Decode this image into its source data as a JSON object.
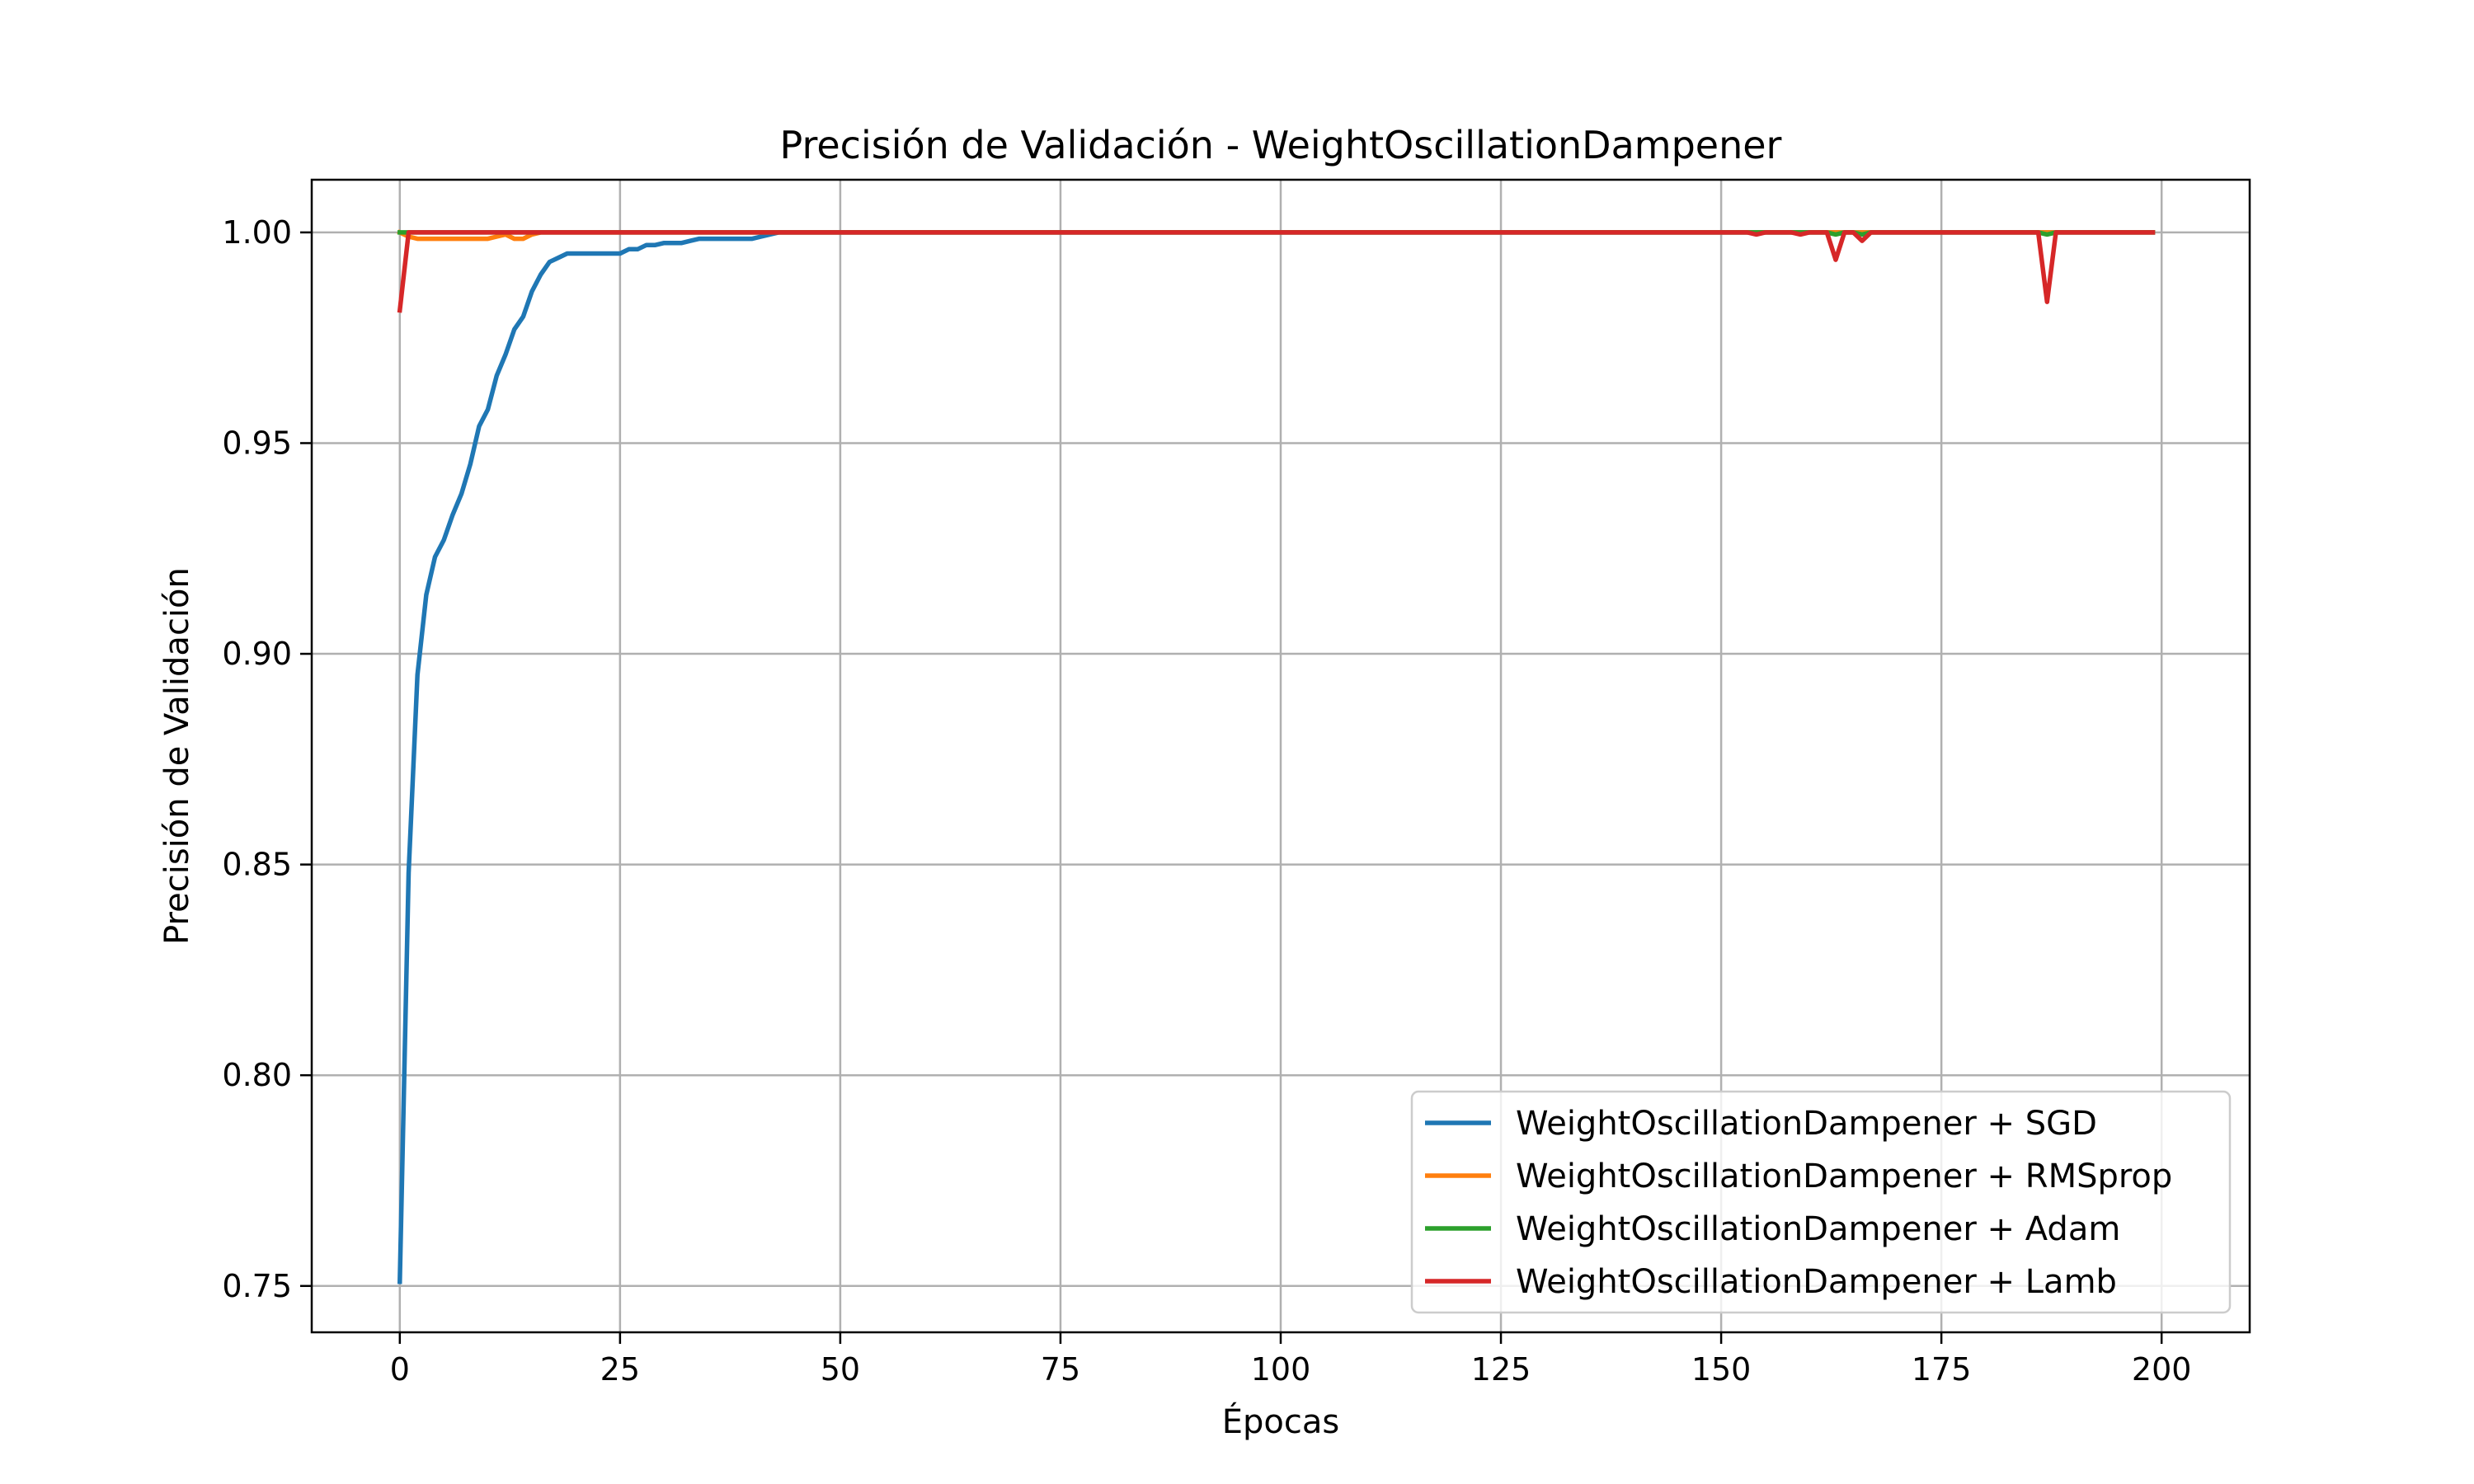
{
  "chart_data": {
    "type": "line",
    "title": "Precisión de Validación - WeightOscillationDampener",
    "xlabel": "Épocas",
    "ylabel": "Precisión de Validación",
    "xlim": [
      -10,
      210
    ],
    "ylim": [
      0.739,
      1.0125
    ],
    "xticks": [
      0,
      25,
      50,
      75,
      100,
      125,
      150,
      175,
      200
    ],
    "yticks": [
      0.75,
      0.8,
      0.85,
      0.9,
      0.95,
      1.0
    ],
    "xtick_labels": [
      "0",
      "25",
      "50",
      "75",
      "100",
      "125",
      "150",
      "175",
      "200"
    ],
    "ytick_labels": [
      "0.75",
      "0.80",
      "0.85",
      "0.90",
      "0.95",
      "1.00"
    ],
    "grid": true,
    "legend_position": "lower-right",
    "series": [
      {
        "name": "WeightOscillationDampener + SGD",
        "color": "#1f77b4",
        "points": [
          [
            0,
            0.751
          ],
          [
            1,
            0.848
          ],
          [
            2,
            0.895
          ],
          [
            3,
            0.914
          ],
          [
            4,
            0.923
          ],
          [
            5,
            0.927
          ],
          [
            6,
            0.933
          ],
          [
            7,
            0.938
          ],
          [
            8,
            0.945
          ],
          [
            9,
            0.954
          ],
          [
            10,
            0.958
          ],
          [
            11,
            0.966
          ],
          [
            12,
            0.971
          ],
          [
            13,
            0.977
          ],
          [
            14,
            0.98
          ],
          [
            15,
            0.986
          ],
          [
            16,
            0.99
          ],
          [
            17,
            0.993
          ],
          [
            18,
            0.994
          ],
          [
            19,
            0.995
          ],
          [
            20,
            0.995
          ],
          [
            25,
            0.995
          ],
          [
            26,
            0.996
          ],
          [
            27,
            0.996
          ],
          [
            28,
            0.997
          ],
          [
            29,
            0.997
          ],
          [
            30,
            0.9975
          ],
          [
            32,
            0.9975
          ],
          [
            33,
            0.998
          ],
          [
            34,
            0.9985
          ],
          [
            40,
            0.9985
          ],
          [
            41,
            0.999
          ],
          [
            42,
            0.9995
          ],
          [
            43,
            1.0
          ],
          [
            199,
            1.0
          ]
        ]
      },
      {
        "name": "WeightOscillationDampener + RMSprop",
        "color": "#ff7f0e",
        "points": [
          [
            0,
            1.0
          ],
          [
            1,
            0.999
          ],
          [
            2,
            0.9985
          ],
          [
            5,
            0.9985
          ],
          [
            10,
            0.9985
          ],
          [
            11,
            0.999
          ],
          [
            12,
            0.9995
          ],
          [
            13,
            0.9985
          ],
          [
            14,
            0.9985
          ],
          [
            15,
            0.9995
          ],
          [
            16,
            1.0
          ],
          [
            199,
            1.0
          ]
        ]
      },
      {
        "name": "WeightOscillationDampener + Adam",
        "color": "#2ca02c",
        "points": [
          [
            0,
            1.0
          ],
          [
            162,
            1.0
          ],
          [
            163,
            0.9995
          ],
          [
            164,
            1.0
          ],
          [
            165,
            1.0
          ],
          [
            166,
            0.9995
          ],
          [
            167,
            1.0
          ],
          [
            186,
            1.0
          ],
          [
            187,
            0.9995
          ],
          [
            188,
            1.0
          ],
          [
            199,
            1.0
          ]
        ]
      },
      {
        "name": "WeightOscillationDampener + Lamb",
        "color": "#d62728",
        "points": [
          [
            0,
            0.9815
          ],
          [
            1,
            1.0
          ],
          [
            153,
            1.0
          ],
          [
            154,
            0.9995
          ],
          [
            155,
            1.0
          ],
          [
            158,
            1.0
          ],
          [
            159,
            0.9995
          ],
          [
            160,
            1.0
          ],
          [
            162,
            1.0
          ],
          [
            163,
            0.9935
          ],
          [
            164,
            1.0
          ],
          [
            165,
            1.0
          ],
          [
            166,
            0.998
          ],
          [
            167,
            1.0
          ],
          [
            186,
            1.0
          ],
          [
            187,
            0.9835
          ],
          [
            188,
            1.0
          ],
          [
            199,
            1.0
          ]
        ]
      }
    ]
  }
}
